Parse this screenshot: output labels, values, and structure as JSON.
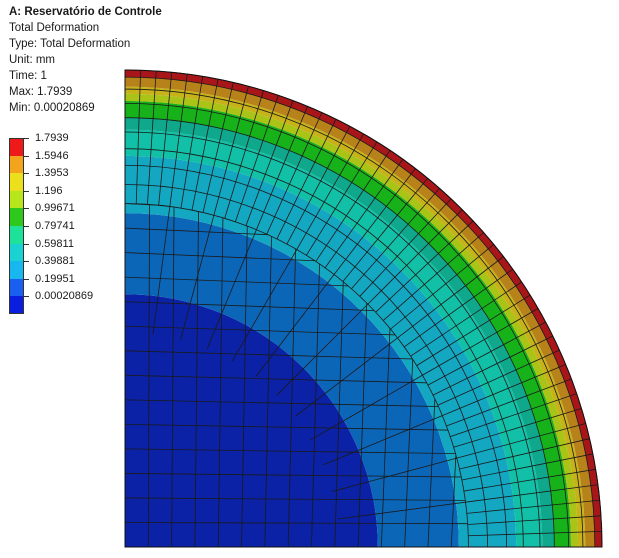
{
  "header": {
    "title": "A: Reservatório de Controle",
    "lines": [
      "Total Deformation",
      "Type: Total Deformation",
      "Unit: mm",
      "Time: 1",
      "Max: 1.7939",
      "Min: 0.00020869"
    ]
  },
  "legend": {
    "entries": [
      {
        "label": "1.7939",
        "color": "#ee1a1a"
      },
      {
        "label": "1.5946",
        "color": "#f3a41c"
      },
      {
        "label": "1.3953",
        "color": "#ecdf1c"
      },
      {
        "label": "1.196",
        "color": "#b8e61c"
      },
      {
        "label": "0.99671",
        "color": "#2ec91c"
      },
      {
        "label": "0.79741",
        "color": "#1ee29a"
      },
      {
        "label": "0.59811",
        "color": "#1ad2d2"
      },
      {
        "label": "0.39881",
        "color": "#18b7f0"
      },
      {
        "label": "0.19951",
        "color": "#1b5ff0"
      },
      {
        "label": "0.00020869",
        "color": "#0a1ee0"
      }
    ]
  },
  "contour_bands": [
    {
      "from": 0,
      "to": 0.53,
      "color": "#0b21a6"
    },
    {
      "from": 0.53,
      "to": 0.7,
      "color": "#0c66b8"
    },
    {
      "from": 0.7,
      "to": 0.82,
      "color": "#14a7c2"
    },
    {
      "from": 0.82,
      "to": 0.875,
      "color": "#11c0a6"
    },
    {
      "from": 0.875,
      "to": 0.9,
      "color": "#10a88d"
    },
    {
      "from": 0.9,
      "to": 0.935,
      "color": "#17b11a"
    },
    {
      "from": 0.935,
      "to": 0.95,
      "color": "#a9c316"
    },
    {
      "from": 0.95,
      "to": 0.965,
      "color": "#c7b21a"
    },
    {
      "from": 0.965,
      "to": 0.985,
      "color": "#b8821a"
    },
    {
      "from": 0.985,
      "to": 1.0,
      "color": "#a8161a"
    }
  ]
}
